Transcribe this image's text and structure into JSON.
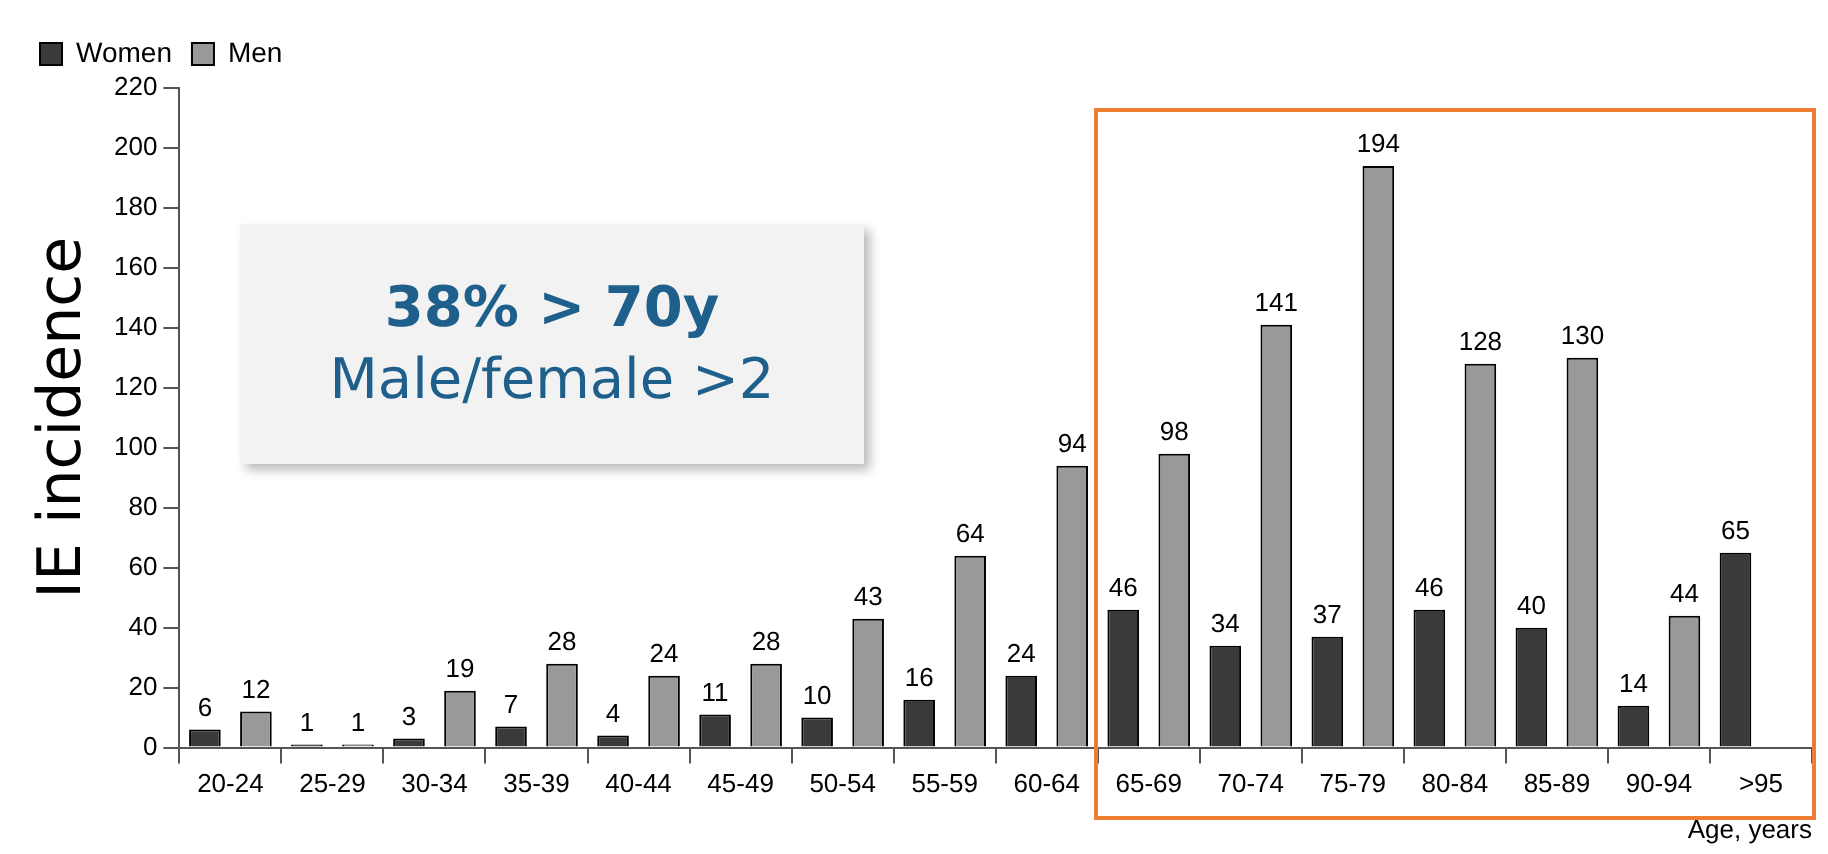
{
  "chart_data": {
    "type": "bar",
    "xlabel": "Age, years",
    "ylabel": "IE incidence",
    "categories": [
      "20-24",
      "25-29",
      "30-34",
      "35-39",
      "40-44",
      "45-49",
      "50-54",
      "55-59",
      "60-64",
      "65-69",
      "70-74",
      "75-79",
      "80-84",
      "85-89",
      "90-94",
      ">95"
    ],
    "series": [
      {
        "name": "Women",
        "color": "#3a3a3a",
        "values": [
          6,
          1,
          3,
          7,
          4,
          11,
          10,
          16,
          24,
          46,
          34,
          37,
          46,
          40,
          14,
          65
        ]
      },
      {
        "name": "Men",
        "color": "#999999",
        "values": [
          12,
          1,
          19,
          28,
          24,
          28,
          43,
          64,
          94,
          98,
          141,
          194,
          128,
          130,
          44,
          null
        ]
      }
    ],
    "ylim": [
      0,
      220
    ],
    "yticks": [
      0,
      20,
      40,
      60,
      80,
      100,
      120,
      140,
      160,
      180,
      200,
      220
    ],
    "grid": false,
    "legend": "top left",
    "data_labels": true,
    "annotations": [
      "38% > 70y",
      "Male/female >2"
    ]
  }
}
